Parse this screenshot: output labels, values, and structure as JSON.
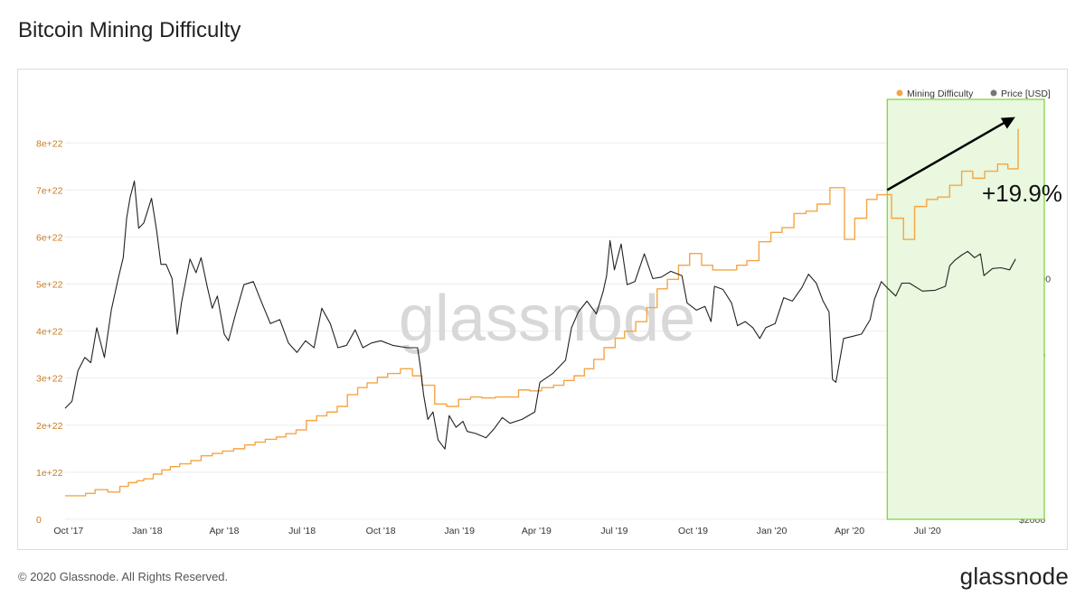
{
  "title": "Bitcoin Mining Difficulty",
  "footer": "© 2020 Glassnode. All Rights Reserved.",
  "brand": "glassnode",
  "chart_data": {
    "type": "line",
    "watermark": "glassnode",
    "legend_position": "top-right",
    "grid": true,
    "annotation": {
      "text": "+19.9%",
      "arrow_from": "2020-05-15",
      "arrow_to": "2020-10-01"
    },
    "highlight_region": {
      "from": "2020-05-15",
      "to": "2020-10-16",
      "color": "#e9f8de",
      "border": "#7bd13c"
    },
    "x_ticks": [
      {
        "date": "2017-10-01",
        "label": "Oct '17"
      },
      {
        "date": "2018-01-01",
        "label": "Jan '18"
      },
      {
        "date": "2018-04-01",
        "label": "Apr '18"
      },
      {
        "date": "2018-07-01",
        "label": "Jul '18"
      },
      {
        "date": "2018-10-01",
        "label": "Oct '18"
      },
      {
        "date": "2019-01-01",
        "label": "Jan '19"
      },
      {
        "date": "2019-04-01",
        "label": "Apr '19"
      },
      {
        "date": "2019-07-01",
        "label": "Jul '19"
      },
      {
        "date": "2019-10-01",
        "label": "Oct '19"
      },
      {
        "date": "2020-01-01",
        "label": "Jan '20"
      },
      {
        "date": "2020-04-01",
        "label": "Apr '20"
      },
      {
        "date": "2020-07-01",
        "label": "Jul '20"
      }
    ],
    "xlim": [
      "2017-09-27",
      "2020-10-16"
    ],
    "y_left": {
      "ylim": [
        0,
        9.1
      ],
      "unit": "e+22",
      "ticks": [
        {
          "value": 0,
          "label": "0"
        },
        {
          "value": 1,
          "label": "1e+22"
        },
        {
          "value": 2,
          "label": "2e+22"
        },
        {
          "value": 3,
          "label": "3e+22"
        },
        {
          "value": 4,
          "label": "4e+22"
        },
        {
          "value": 5,
          "label": "5e+22"
        },
        {
          "value": 6,
          "label": "6e+22"
        },
        {
          "value": 7,
          "label": "7e+22"
        },
        {
          "value": 8,
          "label": "8e+22"
        }
      ]
    },
    "y_right": {
      "scale": "log",
      "ylim": [
        2000,
        35000
      ],
      "ticks": [
        {
          "value": 2000,
          "label": "$2000"
        },
        {
          "value": 6000,
          "label": "$6000"
        },
        {
          "value": 10000,
          "label": "$10000"
        }
      ]
    },
    "series": [
      {
        "name": "Mining Difficulty",
        "axis": "left",
        "color": "#f5a545",
        "step": true,
        "points": [
          [
            "2017-09-27",
            0.5
          ],
          [
            "2017-10-21",
            0.55
          ],
          [
            "2017-11-01",
            0.63
          ],
          [
            "2017-11-16",
            0.58
          ],
          [
            "2017-11-30",
            0.7
          ],
          [
            "2017-12-10",
            0.78
          ],
          [
            "2017-12-20",
            0.82
          ],
          [
            "2017-12-28",
            0.86
          ],
          [
            "2018-01-08",
            0.96
          ],
          [
            "2018-01-18",
            1.05
          ],
          [
            "2018-01-28",
            1.12
          ],
          [
            "2018-02-08",
            1.18
          ],
          [
            "2018-02-21",
            1.25
          ],
          [
            "2018-03-05",
            1.35
          ],
          [
            "2018-03-18",
            1.4
          ],
          [
            "2018-03-30",
            1.45
          ],
          [
            "2018-04-12",
            1.5
          ],
          [
            "2018-04-25",
            1.58
          ],
          [
            "2018-05-07",
            1.64
          ],
          [
            "2018-05-19",
            1.7
          ],
          [
            "2018-06-01",
            1.75
          ],
          [
            "2018-06-12",
            1.82
          ],
          [
            "2018-06-24",
            1.9
          ],
          [
            "2018-07-06",
            2.1
          ],
          [
            "2018-07-18",
            2.2
          ],
          [
            "2018-07-30",
            2.28
          ],
          [
            "2018-08-11",
            2.4
          ],
          [
            "2018-08-23",
            2.65
          ],
          [
            "2018-09-04",
            2.8
          ],
          [
            "2018-09-15",
            2.9
          ],
          [
            "2018-09-27",
            3.02
          ],
          [
            "2018-10-09",
            3.1
          ],
          [
            "2018-10-24",
            3.2
          ],
          [
            "2018-11-07",
            3.05
          ],
          [
            "2018-11-18",
            2.85
          ],
          [
            "2018-12-03",
            2.45
          ],
          [
            "2018-12-17",
            2.4
          ],
          [
            "2018-12-31",
            2.55
          ],
          [
            "2019-01-14",
            2.6
          ],
          [
            "2019-01-27",
            2.58
          ],
          [
            "2019-02-12",
            2.6
          ],
          [
            "2019-02-26",
            2.6
          ],
          [
            "2019-03-11",
            2.75
          ],
          [
            "2019-03-24",
            2.73
          ],
          [
            "2019-04-07",
            2.8
          ],
          [
            "2019-04-21",
            2.85
          ],
          [
            "2019-05-03",
            2.95
          ],
          [
            "2019-05-15",
            3.05
          ],
          [
            "2019-05-27",
            3.2
          ],
          [
            "2019-06-07",
            3.4
          ],
          [
            "2019-06-19",
            3.65
          ],
          [
            "2019-07-02",
            3.85
          ],
          [
            "2019-07-13",
            4.0
          ],
          [
            "2019-07-26",
            4.2
          ],
          [
            "2019-08-08",
            4.5
          ],
          [
            "2019-08-20",
            4.9
          ],
          [
            "2019-09-01",
            5.1
          ],
          [
            "2019-09-14",
            5.4
          ],
          [
            "2019-09-27",
            5.65
          ],
          [
            "2019-10-11",
            5.4
          ],
          [
            "2019-10-24",
            5.3
          ],
          [
            "2019-11-08",
            5.3
          ],
          [
            "2019-11-21",
            5.4
          ],
          [
            "2019-12-03",
            5.5
          ],
          [
            "2019-12-17",
            5.9
          ],
          [
            "2019-12-31",
            6.1
          ],
          [
            "2020-01-13",
            6.2
          ],
          [
            "2020-01-27",
            6.5
          ],
          [
            "2020-02-10",
            6.55
          ],
          [
            "2020-02-23",
            6.7
          ],
          [
            "2020-03-09",
            7.05
          ],
          [
            "2020-03-26",
            5.95
          ],
          [
            "2020-04-07",
            6.4
          ],
          [
            "2020-04-21",
            6.8
          ],
          [
            "2020-05-03",
            6.9
          ],
          [
            "2020-05-20",
            6.4
          ],
          [
            "2020-06-03",
            5.95
          ],
          [
            "2020-06-16",
            6.65
          ],
          [
            "2020-06-30",
            6.8
          ],
          [
            "2020-07-13",
            6.85
          ],
          [
            "2020-07-27",
            7.1
          ],
          [
            "2020-08-10",
            7.4
          ],
          [
            "2020-08-23",
            7.25
          ],
          [
            "2020-09-06",
            7.4
          ],
          [
            "2020-09-21",
            7.55
          ],
          [
            "2020-10-03",
            7.45
          ],
          [
            "2020-10-15",
            8.3
          ]
        ]
      },
      {
        "name": "Price [USD]",
        "axis": "right",
        "color": "#222222",
        "points": [
          [
            "2017-09-27",
            4200
          ],
          [
            "2017-10-05",
            4400
          ],
          [
            "2017-10-12",
            5400
          ],
          [
            "2017-10-20",
            5900
          ],
          [
            "2017-10-27",
            5700
          ],
          [
            "2017-11-03",
            7200
          ],
          [
            "2017-11-12",
            5900
          ],
          [
            "2017-11-20",
            8100
          ],
          [
            "2017-11-28",
            10000
          ],
          [
            "2017-12-04",
            11500
          ],
          [
            "2017-12-08",
            15000
          ],
          [
            "2017-12-12",
            17200
          ],
          [
            "2017-12-17",
            19200
          ],
          [
            "2017-12-22",
            14000
          ],
          [
            "2017-12-28",
            14500
          ],
          [
            "2018-01-06",
            17100
          ],
          [
            "2018-01-12",
            13800
          ],
          [
            "2018-01-17",
            11000
          ],
          [
            "2018-01-23",
            11000
          ],
          [
            "2018-01-30",
            10000
          ],
          [
            "2018-02-05",
            6900
          ],
          [
            "2018-02-10",
            8500
          ],
          [
            "2018-02-20",
            11400
          ],
          [
            "2018-02-27",
            10400
          ],
          [
            "2018-03-05",
            11500
          ],
          [
            "2018-03-12",
            9500
          ],
          [
            "2018-03-18",
            8200
          ],
          [
            "2018-03-24",
            8900
          ],
          [
            "2018-04-01",
            6900
          ],
          [
            "2018-04-06",
            6600
          ],
          [
            "2018-04-15",
            8000
          ],
          [
            "2018-04-24",
            9600
          ],
          [
            "2018-05-05",
            9800
          ],
          [
            "2018-05-15",
            8500
          ],
          [
            "2018-05-25",
            7400
          ],
          [
            "2018-06-05",
            7600
          ],
          [
            "2018-06-15",
            6500
          ],
          [
            "2018-06-25",
            6100
          ],
          [
            "2018-07-05",
            6600
          ],
          [
            "2018-07-15",
            6300
          ],
          [
            "2018-07-24",
            8200
          ],
          [
            "2018-08-03",
            7400
          ],
          [
            "2018-08-12",
            6300
          ],
          [
            "2018-08-22",
            6400
          ],
          [
            "2018-09-01",
            7100
          ],
          [
            "2018-09-10",
            6300
          ],
          [
            "2018-09-20",
            6500
          ],
          [
            "2018-10-01",
            6600
          ],
          [
            "2018-10-15",
            6400
          ],
          [
            "2018-11-01",
            6300
          ],
          [
            "2018-11-13",
            6300
          ],
          [
            "2018-11-16",
            5600
          ],
          [
            "2018-11-20",
            4600
          ],
          [
            "2018-11-25",
            3900
          ],
          [
            "2018-12-01",
            4100
          ],
          [
            "2018-12-07",
            3400
          ],
          [
            "2018-12-15",
            3200
          ],
          [
            "2018-12-20",
            4000
          ],
          [
            "2018-12-28",
            3700
          ],
          [
            "2019-01-05",
            3850
          ],
          [
            "2019-01-10",
            3600
          ],
          [
            "2019-01-20",
            3550
          ],
          [
            "2019-02-01",
            3450
          ],
          [
            "2019-02-10",
            3650
          ],
          [
            "2019-02-20",
            3950
          ],
          [
            "2019-03-01",
            3800
          ],
          [
            "2019-03-15",
            3900
          ],
          [
            "2019-03-30",
            4100
          ],
          [
            "2019-04-05",
            5000
          ],
          [
            "2019-04-20",
            5300
          ],
          [
            "2019-05-05",
            5800
          ],
          [
            "2019-05-12",
            7200
          ],
          [
            "2019-05-20",
            8000
          ],
          [
            "2019-05-30",
            8600
          ],
          [
            "2019-06-10",
            7900
          ],
          [
            "2019-06-18",
            9200
          ],
          [
            "2019-06-22",
            10200
          ],
          [
            "2019-06-26",
            12900
          ],
          [
            "2019-07-01",
            10600
          ],
          [
            "2019-07-09",
            12600
          ],
          [
            "2019-07-16",
            9600
          ],
          [
            "2019-07-25",
            9800
          ],
          [
            "2019-08-05",
            11800
          ],
          [
            "2019-08-15",
            10000
          ],
          [
            "2019-08-25",
            10100
          ],
          [
            "2019-09-05",
            10500
          ],
          [
            "2019-09-18",
            10200
          ],
          [
            "2019-09-24",
            8500
          ],
          [
            "2019-10-05",
            8100
          ],
          [
            "2019-10-15",
            8300
          ],
          [
            "2019-10-22",
            7500
          ],
          [
            "2019-10-26",
            9500
          ],
          [
            "2019-11-05",
            9300
          ],
          [
            "2019-11-15",
            8500
          ],
          [
            "2019-11-22",
            7300
          ],
          [
            "2019-12-01",
            7500
          ],
          [
            "2019-12-10",
            7200
          ],
          [
            "2019-12-18",
            6700
          ],
          [
            "2019-12-25",
            7200
          ],
          [
            "2020-01-05",
            7400
          ],
          [
            "2020-01-15",
            8800
          ],
          [
            "2020-01-25",
            8600
          ],
          [
            "2020-02-05",
            9400
          ],
          [
            "2020-02-13",
            10300
          ],
          [
            "2020-02-22",
            9700
          ],
          [
            "2020-03-01",
            8600
          ],
          [
            "2020-03-08",
            8000
          ],
          [
            "2020-03-12",
            5100
          ],
          [
            "2020-03-16",
            5000
          ],
          [
            "2020-03-25",
            6700
          ],
          [
            "2020-04-05",
            6800
          ],
          [
            "2020-04-15",
            6900
          ],
          [
            "2020-04-25",
            7600
          ],
          [
            "2020-04-30",
            8700
          ],
          [
            "2020-05-08",
            9800
          ],
          [
            "2020-05-15",
            9400
          ],
          [
            "2020-05-25",
            8900
          ],
          [
            "2020-06-01",
            9700
          ],
          [
            "2020-06-10",
            9700
          ],
          [
            "2020-06-25",
            9200
          ],
          [
            "2020-07-10",
            9250
          ],
          [
            "2020-07-22",
            9500
          ],
          [
            "2020-07-27",
            10900
          ],
          [
            "2020-08-02",
            11300
          ],
          [
            "2020-08-10",
            11700
          ],
          [
            "2020-08-17",
            12000
          ],
          [
            "2020-08-25",
            11500
          ],
          [
            "2020-09-01",
            11800
          ],
          [
            "2020-09-05",
            10200
          ],
          [
            "2020-09-15",
            10700
          ],
          [
            "2020-09-25",
            10750
          ],
          [
            "2020-10-05",
            10600
          ],
          [
            "2020-10-12",
            11400
          ]
        ]
      }
    ]
  }
}
